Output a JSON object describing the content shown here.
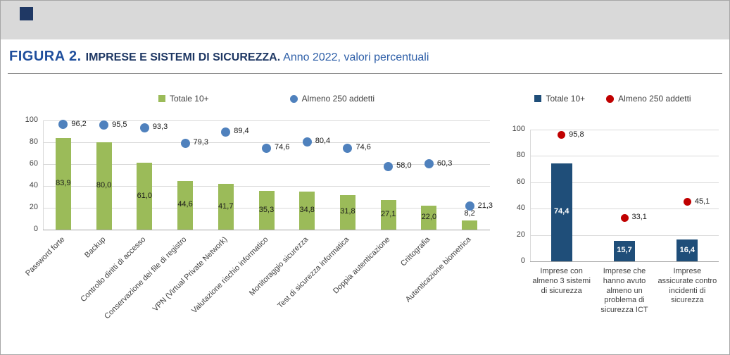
{
  "header": {
    "figure_label": "FIGURA 2.",
    "title": "IMPRESE E SISTEMI DI SICUREZZA.",
    "subtitle": "Anno 2022, valori percentuali"
  },
  "colors": {
    "green_bar": "#9bbb59",
    "blue_dot": "#4f81bd",
    "navy_bar": "#1f4e79",
    "red_dot": "#c00000",
    "title_blue": "#1f4e9c",
    "title_navy": "#1f3864",
    "subtitle_blue": "#2e5fa8"
  },
  "chart_data": [
    {
      "type": "bar",
      "ylim": [
        0,
        100
      ],
      "yticks": [
        0,
        20,
        40,
        60,
        80,
        100
      ],
      "grid": true,
      "legend_position": "top",
      "categories": [
        "Password forte",
        "Backup",
        "Controllo diritti di accesso",
        "Conservazione dei file di registro",
        "VPN (Virtual Private Network)",
        "Valutazione rischio informatico",
        "Monitoraggio sicurezza",
        "Test di sicurezza informatica",
        "Doppia autenticazione",
        "Crittografia",
        "Autenticazione biometrica"
      ],
      "series": [
        {
          "name": "Totale 10+",
          "type": "bar",
          "color": "#9bbb59",
          "values": [
            83.9,
            80.0,
            61.0,
            44.6,
            41.7,
            35.3,
            34.8,
            31.8,
            27.1,
            22.0,
            8.2
          ],
          "labels": [
            "83,9",
            "80,0",
            "61,0",
            "44,6",
            "41,7",
            "35,3",
            "34,8",
            "31,8",
            "27,1",
            "22,0",
            "8,2"
          ]
        },
        {
          "name": "Almeno 250 addetti",
          "type": "point",
          "color": "#4f81bd",
          "values": [
            96.2,
            95.5,
            93.3,
            79.3,
            89.4,
            74.6,
            80.4,
            74.6,
            58.0,
            60.3,
            21.3
          ],
          "labels": [
            "96,2",
            "95,5",
            "93,3",
            "79,3",
            "89,4",
            "74,6",
            "80,4",
            "74,6",
            "58,0",
            "60,3",
            "21,3"
          ]
        }
      ]
    },
    {
      "type": "bar",
      "ylim": [
        0,
        100
      ],
      "yticks": [
        0,
        20,
        40,
        60,
        80,
        100
      ],
      "grid": true,
      "legend_position": "top",
      "categories": [
        "Imprese con almeno 3 sistemi di sicurezza",
        "Imprese che hanno avuto almeno un problema di sicurezza ICT",
        "Imprese assicurate contro incidenti di sicurezza"
      ],
      "series": [
        {
          "name": "Totale 10+",
          "type": "bar",
          "color": "#1f4e79",
          "values": [
            74.4,
            15.7,
            16.4
          ],
          "labels": [
            "74,4",
            "15,7",
            "16,4"
          ]
        },
        {
          "name": "Almeno 250 addetti",
          "type": "point",
          "color": "#c00000",
          "values": [
            95.8,
            33.1,
            45.1
          ],
          "labels": [
            "95,8",
            "33,1",
            "45,1"
          ]
        }
      ]
    }
  ]
}
